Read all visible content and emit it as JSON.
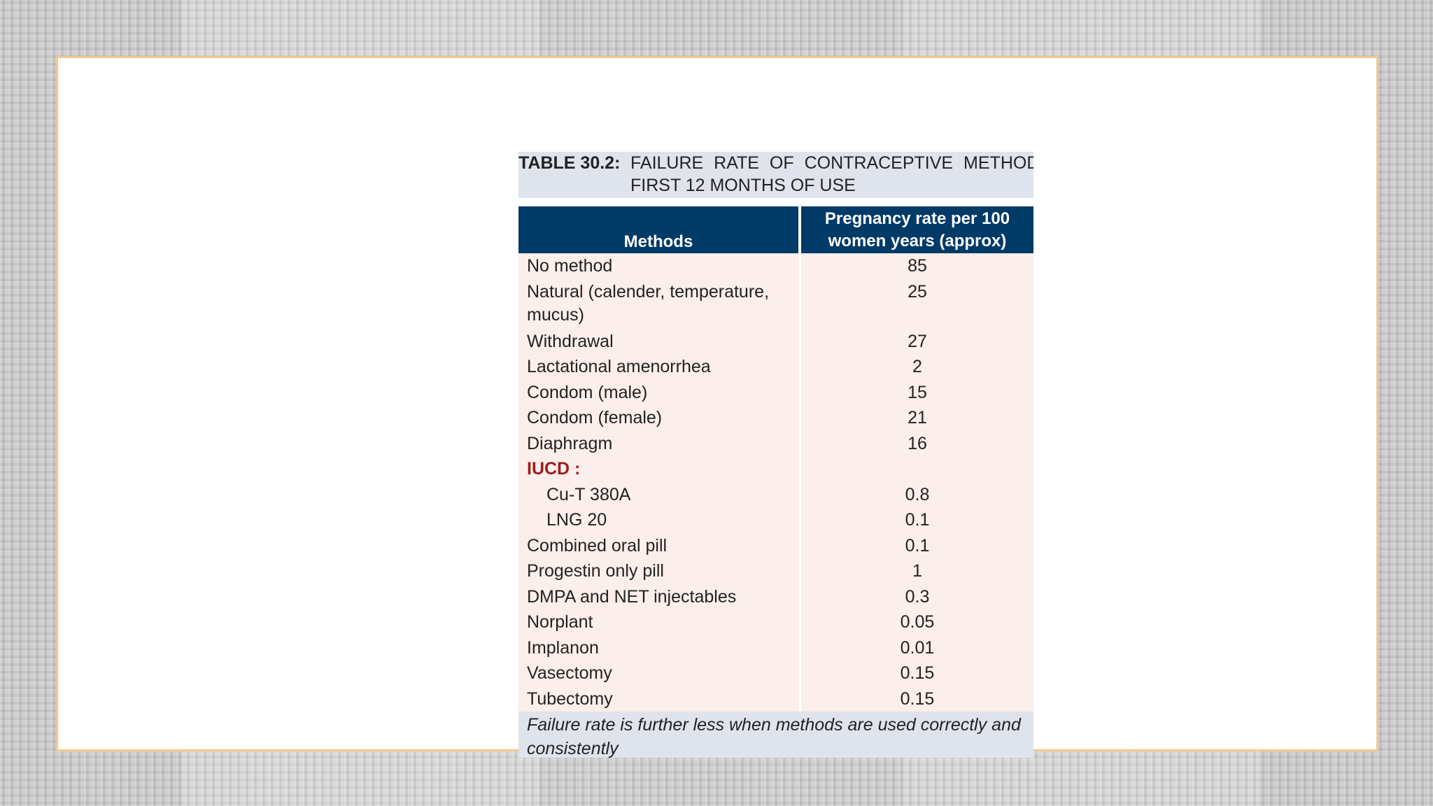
{
  "table": {
    "caption_label": "TABLE 30.2:",
    "caption_line1": "FAILURE RATE OF CONTRACEPTIVE METHODS II",
    "caption_line2": "FIRST 12 MONTHS OF USE",
    "header_method": "Methods",
    "header_rate": "Pregnancy rate per 100 women years (approx)",
    "rows": [
      {
        "method": "No method",
        "value": "85"
      },
      {
        "method": "Natural (calender, temperature, mucus)",
        "value": "25"
      },
      {
        "method": "Withdrawal",
        "value": "27"
      },
      {
        "method": "Lactational amenorrhea",
        "value": "2"
      },
      {
        "method": "Condom (male)",
        "value": "15"
      },
      {
        "method": "Condom (female)",
        "value": "21"
      },
      {
        "method": "Diaphragm",
        "value": "16"
      },
      {
        "method": "IUCD :",
        "value": ""
      },
      {
        "method": "Cu-T 380A",
        "value": "0.8"
      },
      {
        "method": "LNG 20",
        "value": "0.1"
      },
      {
        "method": "Combined oral pill",
        "value": "0.1"
      },
      {
        "method": "Progestin only pill",
        "value": "1"
      },
      {
        "method": "DMPA and NET injectables",
        "value": "0.3"
      },
      {
        "method": "Norplant",
        "value": "0.05"
      },
      {
        "method": "Implanon",
        "value": "0.01"
      },
      {
        "method": "Vasectomy",
        "value": "0.15"
      },
      {
        "method": "Tubectomy",
        "value": "0.15"
      }
    ],
    "footnote": "Failure rate is further less when methods are used correctly and consistently"
  },
  "colors": {
    "header_bg": "#003a67",
    "row_bg": "#fceeea",
    "caption_bg": "#dfe3ec",
    "group_label": "#9c1c1f",
    "slide_border": "#f2c88f"
  }
}
